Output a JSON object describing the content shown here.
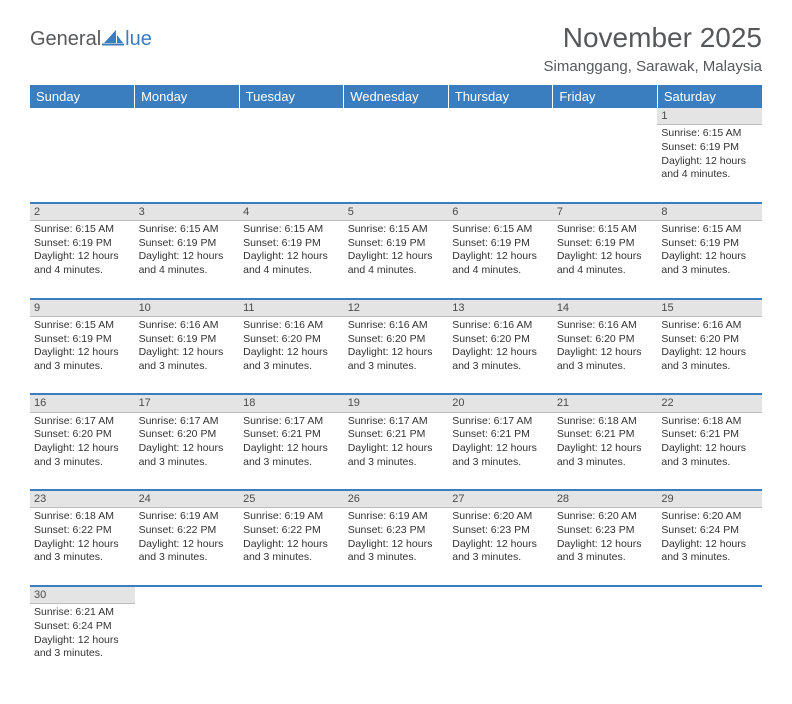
{
  "logo": {
    "text1": "General",
    "text2": "lue",
    "icon_color": "#3a7ebf"
  },
  "title": "November 2025",
  "location": "Simanggang, Sarawak, Malaysia",
  "colors": {
    "header_bg": "#3a7ebf",
    "header_text": "#ffffff",
    "daynum_bg": "#e4e4e4",
    "row_divider": "#3a7ebf",
    "body_text": "#333333",
    "title_text": "#57585a"
  },
  "typography": {
    "title_fontsize": 28,
    "location_fontsize": 15,
    "dayheader_fontsize": 13,
    "daynum_fontsize": 11,
    "cell_fontsize": 10.5
  },
  "day_headers": [
    "Sunday",
    "Monday",
    "Tuesday",
    "Wednesday",
    "Thursday",
    "Friday",
    "Saturday"
  ],
  "weeks": [
    [
      null,
      null,
      null,
      null,
      null,
      null,
      {
        "n": "1",
        "sunrise": "6:15 AM",
        "sunset": "6:19 PM",
        "daylight": "12 hours and 4 minutes."
      }
    ],
    [
      {
        "n": "2",
        "sunrise": "6:15 AM",
        "sunset": "6:19 PM",
        "daylight": "12 hours and 4 minutes."
      },
      {
        "n": "3",
        "sunrise": "6:15 AM",
        "sunset": "6:19 PM",
        "daylight": "12 hours and 4 minutes."
      },
      {
        "n": "4",
        "sunrise": "6:15 AM",
        "sunset": "6:19 PM",
        "daylight": "12 hours and 4 minutes."
      },
      {
        "n": "5",
        "sunrise": "6:15 AM",
        "sunset": "6:19 PM",
        "daylight": "12 hours and 4 minutes."
      },
      {
        "n": "6",
        "sunrise": "6:15 AM",
        "sunset": "6:19 PM",
        "daylight": "12 hours and 4 minutes."
      },
      {
        "n": "7",
        "sunrise": "6:15 AM",
        "sunset": "6:19 PM",
        "daylight": "12 hours and 4 minutes."
      },
      {
        "n": "8",
        "sunrise": "6:15 AM",
        "sunset": "6:19 PM",
        "daylight": "12 hours and 3 minutes."
      }
    ],
    [
      {
        "n": "9",
        "sunrise": "6:15 AM",
        "sunset": "6:19 PM",
        "daylight": "12 hours and 3 minutes."
      },
      {
        "n": "10",
        "sunrise": "6:16 AM",
        "sunset": "6:19 PM",
        "daylight": "12 hours and 3 minutes."
      },
      {
        "n": "11",
        "sunrise": "6:16 AM",
        "sunset": "6:20 PM",
        "daylight": "12 hours and 3 minutes."
      },
      {
        "n": "12",
        "sunrise": "6:16 AM",
        "sunset": "6:20 PM",
        "daylight": "12 hours and 3 minutes."
      },
      {
        "n": "13",
        "sunrise": "6:16 AM",
        "sunset": "6:20 PM",
        "daylight": "12 hours and 3 minutes."
      },
      {
        "n": "14",
        "sunrise": "6:16 AM",
        "sunset": "6:20 PM",
        "daylight": "12 hours and 3 minutes."
      },
      {
        "n": "15",
        "sunrise": "6:16 AM",
        "sunset": "6:20 PM",
        "daylight": "12 hours and 3 minutes."
      }
    ],
    [
      {
        "n": "16",
        "sunrise": "6:17 AM",
        "sunset": "6:20 PM",
        "daylight": "12 hours and 3 minutes."
      },
      {
        "n": "17",
        "sunrise": "6:17 AM",
        "sunset": "6:20 PM",
        "daylight": "12 hours and 3 minutes."
      },
      {
        "n": "18",
        "sunrise": "6:17 AM",
        "sunset": "6:21 PM",
        "daylight": "12 hours and 3 minutes."
      },
      {
        "n": "19",
        "sunrise": "6:17 AM",
        "sunset": "6:21 PM",
        "daylight": "12 hours and 3 minutes."
      },
      {
        "n": "20",
        "sunrise": "6:17 AM",
        "sunset": "6:21 PM",
        "daylight": "12 hours and 3 minutes."
      },
      {
        "n": "21",
        "sunrise": "6:18 AM",
        "sunset": "6:21 PM",
        "daylight": "12 hours and 3 minutes."
      },
      {
        "n": "22",
        "sunrise": "6:18 AM",
        "sunset": "6:21 PM",
        "daylight": "12 hours and 3 minutes."
      }
    ],
    [
      {
        "n": "23",
        "sunrise": "6:18 AM",
        "sunset": "6:22 PM",
        "daylight": "12 hours and 3 minutes."
      },
      {
        "n": "24",
        "sunrise": "6:19 AM",
        "sunset": "6:22 PM",
        "daylight": "12 hours and 3 minutes."
      },
      {
        "n": "25",
        "sunrise": "6:19 AM",
        "sunset": "6:22 PM",
        "daylight": "12 hours and 3 minutes."
      },
      {
        "n": "26",
        "sunrise": "6:19 AM",
        "sunset": "6:23 PM",
        "daylight": "12 hours and 3 minutes."
      },
      {
        "n": "27",
        "sunrise": "6:20 AM",
        "sunset": "6:23 PM",
        "daylight": "12 hours and 3 minutes."
      },
      {
        "n": "28",
        "sunrise": "6:20 AM",
        "sunset": "6:23 PM",
        "daylight": "12 hours and 3 minutes."
      },
      {
        "n": "29",
        "sunrise": "6:20 AM",
        "sunset": "6:24 PM",
        "daylight": "12 hours and 3 minutes."
      }
    ],
    [
      {
        "n": "30",
        "sunrise": "6:21 AM",
        "sunset": "6:24 PM",
        "daylight": "12 hours and 3 minutes."
      },
      null,
      null,
      null,
      null,
      null,
      null
    ]
  ],
  "labels": {
    "sunrise": "Sunrise:",
    "sunset": "Sunset:",
    "daylight": "Daylight:"
  }
}
